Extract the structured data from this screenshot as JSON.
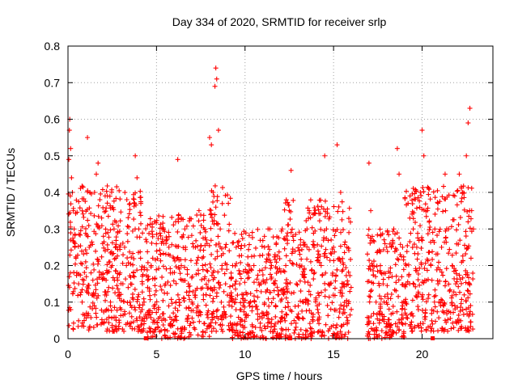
{
  "chart_data": {
    "type": "scatter",
    "title": "Day 334 of 2020, SRMTID for receiver srlp",
    "xlabel": "GPS time / hours",
    "ylabel": "SRMTID / TECUs",
    "xlim": [
      0,
      24
    ],
    "ylim": [
      0,
      0.8
    ],
    "xticks": [
      0,
      5,
      10,
      15,
      20
    ],
    "yticks": [
      0,
      0.1,
      0.2,
      0.3,
      0.4,
      0.5,
      0.6,
      0.7,
      0.8
    ],
    "xtick_labels": [
      "0",
      "5",
      "10",
      "15",
      "20"
    ],
    "ytick_labels": [
      "0",
      "0.1",
      "0.2",
      "0.3",
      "0.4",
      "0.5",
      "0.6",
      "0.7",
      "0.8"
    ],
    "grid": true,
    "marker": "+",
    "color": "#ff0000",
    "axis_markers": [
      4.4,
      12.55,
      20.6
    ],
    "series": [
      {
        "name": "SRMTID",
        "points": [
          [
            0.05,
            0.49
          ],
          [
            0.08,
            0.57
          ],
          [
            0.1,
            0.6
          ],
          [
            0.15,
            0.52
          ],
          [
            0.2,
            0.44
          ],
          [
            0.25,
            0.4
          ],
          [
            0.3,
            0.35
          ],
          [
            0.35,
            0.3
          ],
          [
            0.4,
            0.26
          ],
          [
            0.45,
            0.22
          ],
          [
            0.5,
            0.18
          ],
          [
            0.6,
            0.15
          ],
          [
            0.7,
            0.12
          ],
          [
            0.8,
            0.1
          ],
          [
            0.9,
            0.16
          ],
          [
            1.0,
            0.21
          ],
          [
            1.1,
            0.55
          ],
          [
            1.2,
            0.25
          ],
          [
            1.3,
            0.18
          ],
          [
            1.4,
            0.12
          ],
          [
            1.5,
            0.4
          ],
          [
            1.6,
            0.45
          ],
          [
            1.7,
            0.48
          ],
          [
            1.8,
            0.38
          ],
          [
            1.9,
            0.33
          ],
          [
            2.0,
            0.28
          ],
          [
            2.1,
            0.24
          ],
          [
            2.2,
            0.18
          ],
          [
            2.3,
            0.14
          ],
          [
            2.4,
            0.1
          ],
          [
            2.5,
            0.2
          ],
          [
            2.6,
            0.3
          ],
          [
            2.7,
            0.22
          ],
          [
            2.8,
            0.16
          ],
          [
            2.9,
            0.12
          ],
          [
            3.0,
            0.08
          ],
          [
            3.1,
            0.15
          ],
          [
            3.2,
            0.25
          ],
          [
            3.3,
            0.2
          ],
          [
            3.4,
            0.14
          ],
          [
            3.5,
            0.1
          ],
          [
            3.6,
            0.06
          ],
          [
            3.7,
            0.18
          ],
          [
            3.8,
            0.5
          ],
          [
            3.9,
            0.44
          ],
          [
            4.0,
            0.3
          ],
          [
            4.1,
            0.22
          ],
          [
            4.2,
            0.15
          ],
          [
            4.3,
            0.1
          ],
          [
            4.5,
            0.14
          ],
          [
            4.7,
            0.2
          ],
          [
            4.9,
            0.12
          ],
          [
            5.1,
            0.08
          ],
          [
            5.3,
            0.05
          ],
          [
            5.5,
            0.15
          ],
          [
            5.7,
            0.25
          ],
          [
            5.9,
            0.18
          ],
          [
            6.1,
            0.1
          ],
          [
            6.2,
            0.49
          ],
          [
            6.4,
            0.2
          ],
          [
            6.6,
            0.3
          ],
          [
            6.8,
            0.15
          ],
          [
            7.0,
            0.1
          ],
          [
            7.2,
            0.25
          ],
          [
            7.4,
            0.35
          ],
          [
            7.6,
            0.2
          ],
          [
            7.8,
            0.12
          ],
          [
            8.0,
            0.55
          ],
          [
            8.1,
            0.53
          ],
          [
            8.2,
            0.4
          ],
          [
            8.3,
            0.69
          ],
          [
            8.35,
            0.74
          ],
          [
            8.4,
            0.71
          ],
          [
            8.5,
            0.57
          ],
          [
            8.6,
            0.3
          ],
          [
            8.7,
            0.2
          ],
          [
            8.9,
            0.15
          ],
          [
            9.1,
            0.1
          ],
          [
            9.3,
            0.2
          ],
          [
            9.5,
            0.25
          ],
          [
            9.7,
            0.15
          ],
          [
            9.9,
            0.12
          ],
          [
            10.1,
            0.18
          ],
          [
            10.3,
            0.1
          ],
          [
            10.5,
            0.2
          ],
          [
            10.7,
            0.08
          ],
          [
            10.9,
            0.15
          ],
          [
            11.1,
            0.25
          ],
          [
            11.3,
            0.3
          ],
          [
            11.5,
            0.2
          ],
          [
            11.7,
            0.15
          ],
          [
            11.9,
            0.12
          ],
          [
            12.1,
            0.3
          ],
          [
            12.3,
            0.2
          ],
          [
            12.5,
            0.35
          ],
          [
            12.6,
            0.46
          ],
          [
            12.7,
            0.28
          ],
          [
            12.9,
            0.15
          ],
          [
            13.1,
            0.2
          ],
          [
            13.3,
            0.1
          ],
          [
            13.5,
            0.3
          ],
          [
            13.7,
            0.12
          ],
          [
            13.9,
            0.25
          ],
          [
            14.1,
            0.08
          ],
          [
            14.3,
            0.2
          ],
          [
            14.5,
            0.5
          ],
          [
            14.6,
            0.3
          ],
          [
            14.8,
            0.15
          ],
          [
            15.0,
            0.25
          ],
          [
            15.2,
            0.53
          ],
          [
            15.4,
            0.4
          ],
          [
            15.6,
            0.15
          ],
          [
            15.8,
            0.05
          ],
          [
            16.0,
            0.08
          ],
          [
            17.0,
            0.48
          ],
          [
            17.1,
            0.35
          ],
          [
            17.2,
            0.2
          ],
          [
            17.4,
            0.1
          ],
          [
            17.6,
            0.05
          ],
          [
            17.8,
            0.15
          ],
          [
            18.0,
            0.25
          ],
          [
            18.2,
            0.18
          ],
          [
            18.4,
            0.3
          ],
          [
            18.6,
            0.52
          ],
          [
            18.7,
            0.45
          ],
          [
            18.9,
            0.25
          ],
          [
            19.1,
            0.2
          ],
          [
            19.3,
            0.15
          ],
          [
            19.5,
            0.3
          ],
          [
            19.7,
            0.25
          ],
          [
            19.9,
            0.4
          ],
          [
            20.0,
            0.57
          ],
          [
            20.1,
            0.5
          ],
          [
            20.3,
            0.35
          ],
          [
            20.5,
            0.2
          ],
          [
            20.7,
            0.1
          ],
          [
            20.9,
            0.15
          ],
          [
            21.1,
            0.25
          ],
          [
            21.3,
            0.45
          ],
          [
            21.5,
            0.3
          ],
          [
            21.7,
            0.2
          ],
          [
            21.9,
            0.15
          ],
          [
            22.1,
            0.45
          ],
          [
            22.3,
            0.4
          ],
          [
            22.5,
            0.5
          ],
          [
            22.6,
            0.59
          ],
          [
            22.7,
            0.63
          ],
          [
            22.8,
            0.35
          ],
          [
            22.9,
            0.3
          ]
        ],
        "band": {
          "description_values": "dense scatter of additional points",
          "segments": [
            {
              "x": [
                0.0,
                4.3
              ],
              "ymin": 0.02,
              "ymax": 0.42
            },
            {
              "x": [
                4.3,
                8.0
              ],
              "ymin": 0.0,
              "ymax": 0.34
            },
            {
              "x": [
                8.0,
                9.2
              ],
              "ymin": 0.02,
              "ymax": 0.42
            },
            {
              "x": [
                9.2,
                12.2
              ],
              "ymin": 0.0,
              "ymax": 0.3
            },
            {
              "x": [
                12.2,
                16.0
              ],
              "ymin": 0.0,
              "ymax": 0.38
            },
            {
              "x": [
                16.9,
                19.0
              ],
              "ymin": 0.0,
              "ymax": 0.3
            },
            {
              "x": [
                19.0,
                22.9
              ],
              "ymin": 0.02,
              "ymax": 0.42
            }
          ]
        }
      }
    ]
  }
}
